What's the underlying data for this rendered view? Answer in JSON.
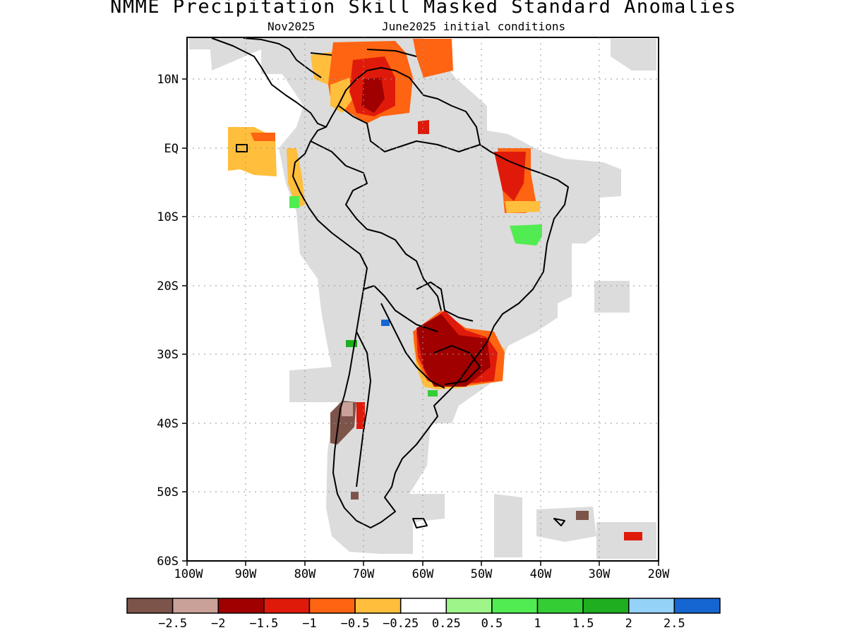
{
  "title": "NMME Precipitation Skill Masked Standard Anomalies",
  "subtitle_left": "Nov2025",
  "subtitle_right": "June2025 initial conditions",
  "map": {
    "lon_range": [
      -100,
      -20
    ],
    "lat_range": [
      -60,
      16
    ],
    "y_ticks": [
      "10N",
      "EQ",
      "10S",
      "20S",
      "30S",
      "40S",
      "50S",
      "60S"
    ],
    "x_ticks": [
      "100W",
      "90W",
      "80W",
      "70W",
      "60W",
      "50W",
      "40W",
      "30W",
      "20W"
    ],
    "gridlines": true,
    "colors": {
      "land_outline": "#000000",
      "skill_mask": "#dcdcdc"
    }
  },
  "colorbar": {
    "colors": [
      "#7d544a",
      "#c9a199",
      "#a00000",
      "#e01a0a",
      "#ff6412",
      "#ffbe3c",
      "#ffffff",
      "#9ef58a",
      "#51ec51",
      "#35cd35",
      "#1fae1f",
      "#95d2f8",
      "#1666d2"
    ],
    "labels": [
      "-2.5",
      "-2",
      "-1.5",
      "-1",
      "-0.5",
      "-0.25",
      "0.25",
      "0.5",
      "1",
      "1.5",
      "2",
      "2.5"
    ]
  }
}
